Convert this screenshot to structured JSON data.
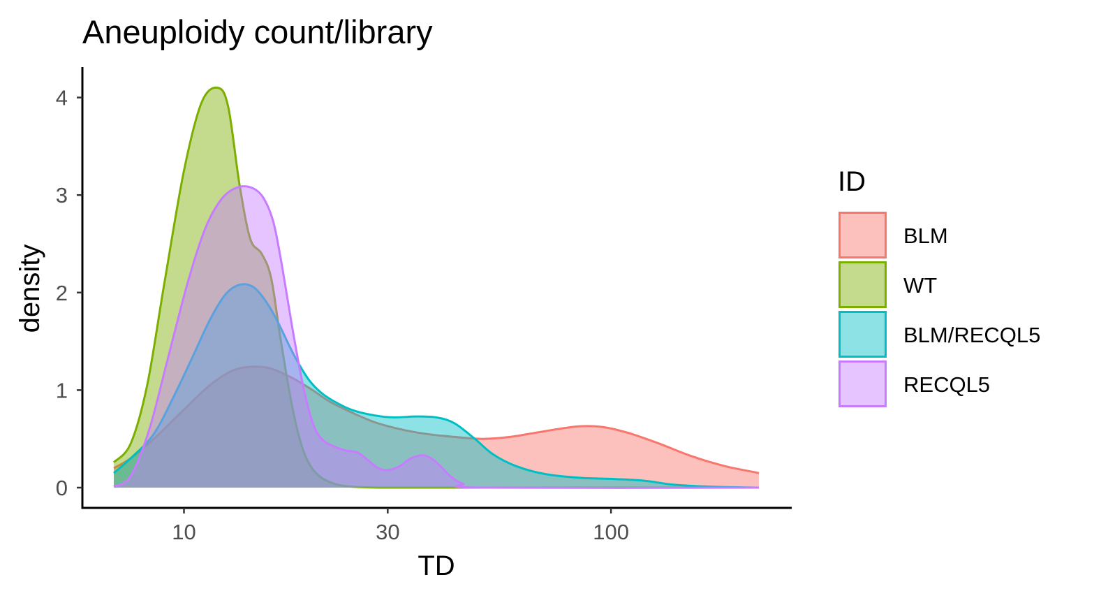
{
  "chart_data": {
    "type": "area",
    "title": "Aneuploidy count/library",
    "xlabel": "TD",
    "ylabel": "density",
    "x_scale": "log10",
    "xlim": [
      6.85,
      222
    ],
    "ylim": [
      0,
      4.1
    ],
    "x_ticks": [
      10,
      30,
      100
    ],
    "y_ticks": [
      0,
      1,
      2,
      3,
      4
    ],
    "grid": false,
    "legend": {
      "title": "ID",
      "position": "right"
    },
    "series": [
      {
        "name": "BLM",
        "color": "#F8766D",
        "x": [
          6.85,
          7.5,
          8.5,
          10.0,
          11.5,
          13.0,
          14.5,
          16.0,
          18.0,
          20.0,
          22.0,
          25.0,
          28.0,
          32.0,
          37.0,
          43.0,
          50.0,
          58.0,
          66.0,
          75.0,
          85.0,
          96.0,
          110.0,
          130.0,
          155.0,
          185.0,
          222.0
        ],
        "y": [
          0.2,
          0.3,
          0.5,
          0.8,
          1.05,
          1.2,
          1.24,
          1.22,
          1.12,
          1.0,
          0.88,
          0.76,
          0.67,
          0.6,
          0.55,
          0.52,
          0.5,
          0.52,
          0.56,
          0.6,
          0.63,
          0.62,
          0.56,
          0.45,
          0.32,
          0.22,
          0.15
        ]
      },
      {
        "name": "WT",
        "color": "#7CAE00",
        "x": [
          6.85,
          7.5,
          8.2,
          9.0,
          10.0,
          11.0,
          12.0,
          12.7,
          13.5,
          14.3,
          15.2,
          16.0,
          16.8,
          17.8,
          18.8,
          19.8,
          21.0,
          22.5,
          24.0,
          26.0,
          29.0,
          35.0,
          222.0
        ],
        "y": [
          0.26,
          0.45,
          1.05,
          2.1,
          3.25,
          3.95,
          4.1,
          3.9,
          3.1,
          2.55,
          2.4,
          2.15,
          1.55,
          0.9,
          0.45,
          0.22,
          0.1,
          0.04,
          0.015,
          0.005,
          0.0,
          0.0,
          0.0
        ]
      },
      {
        "name": "BLM/RECQL5",
        "color": "#00BFC4",
        "x": [
          6.85,
          7.5,
          8.5,
          9.5,
          10.5,
          11.5,
          12.5,
          13.5,
          14.5,
          15.5,
          16.5,
          18.0,
          19.5,
          21.0,
          23.0,
          25.0,
          28.0,
          31.0,
          35.0,
          39.0,
          43.0,
          48.0,
          53.0,
          60.0,
          70.0,
          85.0,
          100.0,
          120.0,
          140.0,
          170.0,
          222.0
        ],
        "y": [
          0.15,
          0.3,
          0.55,
          0.95,
          1.35,
          1.72,
          1.98,
          2.08,
          2.06,
          1.92,
          1.72,
          1.38,
          1.12,
          0.97,
          0.86,
          0.79,
          0.74,
          0.72,
          0.73,
          0.72,
          0.66,
          0.5,
          0.34,
          0.22,
          0.14,
          0.1,
          0.09,
          0.07,
          0.03,
          0.01,
          0.0
        ]
      },
      {
        "name": "RECQL5",
        "color": "#C77CFF",
        "x": [
          6.85,
          7.5,
          8.3,
          9.2,
          10.2,
          11.2,
          12.2,
          13.2,
          14.3,
          15.3,
          16.2,
          17.0,
          18.0,
          19.0,
          20.0,
          21.0,
          22.5,
          24.0,
          25.5,
          27.0,
          28.5,
          30.0,
          32.0,
          34.0,
          36.5,
          39.0,
          42.0,
          45.0,
          50.0,
          222.0
        ],
        "y": [
          0.01,
          0.12,
          0.6,
          1.35,
          2.1,
          2.65,
          2.95,
          3.07,
          3.08,
          2.98,
          2.72,
          2.25,
          1.6,
          1.05,
          0.67,
          0.5,
          0.42,
          0.38,
          0.36,
          0.28,
          0.2,
          0.18,
          0.22,
          0.3,
          0.33,
          0.26,
          0.12,
          0.04,
          0.0,
          0.0
        ]
      }
    ]
  }
}
